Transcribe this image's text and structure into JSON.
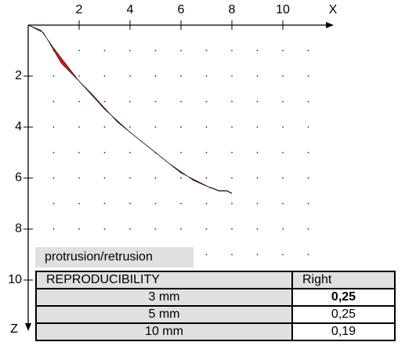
{
  "chart_data": {
    "type": "line",
    "x_label": "X",
    "y_label": "Z",
    "xlim": [
      0,
      12
    ],
    "ylim": [
      0,
      12
    ],
    "xticks": [
      2,
      4,
      6,
      8,
      10
    ],
    "yticks": [
      2,
      4,
      6,
      8,
      10
    ],
    "grid": true,
    "series": [
      {
        "color": "#d81818",
        "x": [
          0,
          0.5,
          1,
          2,
          3,
          4,
          5,
          6,
          7,
          7.2
        ],
        "values": [
          0,
          0.2,
          0.9,
          2.2,
          3.3,
          4.2,
          5.0,
          5.8,
          6.3,
          6.4
        ]
      },
      {
        "color": "#d81818",
        "x": [
          0,
          0.6,
          1.3,
          2.5,
          3.5,
          4.5,
          5.5,
          6.5,
          7.2
        ],
        "values": [
          0,
          0.3,
          1.5,
          2.7,
          3.8,
          4.6,
          5.4,
          6.1,
          6.4
        ]
      },
      {
        "color": "#000000",
        "x": [
          7.1,
          7.5,
          7.8,
          8.0
        ],
        "values": [
          6.35,
          6.5,
          6.5,
          6.6
        ]
      }
    ]
  },
  "table": {
    "caption": "protrusion/retrusion",
    "header": [
      "REPRODUCIBILITY",
      "Right"
    ],
    "rows": [
      [
        "3 mm",
        "0,25"
      ],
      [
        "5 mm",
        "0,25"
      ],
      [
        "10 mm",
        "0,19"
      ]
    ]
  }
}
